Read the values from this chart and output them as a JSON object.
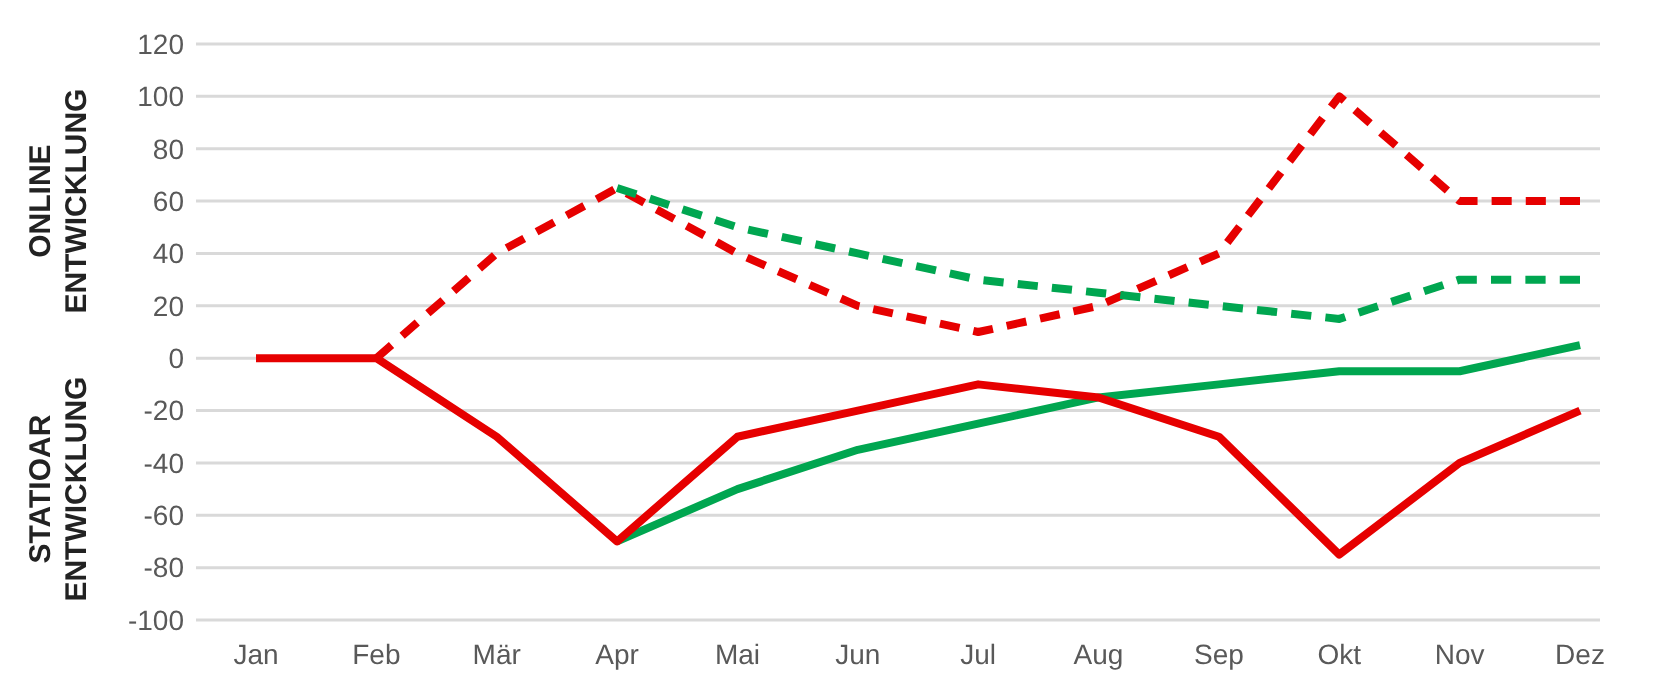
{
  "chart_data": {
    "type": "line",
    "ylabel": "ONLINE ENTWICKLUNG",
    "annotations": [
      "STATIOAR ENTWICKLUNG"
    ],
    "categories": [
      "Jan",
      "Feb",
      "Mär",
      "Apr",
      "Mai",
      "Jun",
      "Jul",
      "Aug",
      "Sep",
      "Okt",
      "Nov",
      "Dez"
    ],
    "ylim": [
      -100,
      120
    ],
    "yticks": [
      -100,
      -80,
      -60,
      -40,
      -20,
      0,
      20,
      40,
      60,
      80,
      100,
      120
    ],
    "grid": "y",
    "series": [
      {
        "color": "#e60000",
        "line_style": "dashed",
        "values": [
          null,
          0,
          40,
          65,
          40,
          20,
          10,
          20,
          40,
          100,
          60,
          60
        ]
      },
      {
        "color": "#00a650",
        "line_style": "dashed",
        "values": [
          null,
          null,
          null,
          65,
          50,
          40,
          30,
          25,
          20,
          15,
          30,
          30
        ]
      },
      {
        "color": "#00a650",
        "line_style": "solid",
        "values": [
          null,
          null,
          null,
          -70,
          -50,
          -35,
          -25,
          -15,
          -10,
          -5,
          -5,
          5
        ]
      },
      {
        "color": "#e60000",
        "line_style": "solid",
        "values": [
          0,
          0,
          -30,
          -70,
          -30,
          -20,
          -10,
          -15,
          -30,
          -75,
          -40,
          -20
        ]
      }
    ]
  }
}
